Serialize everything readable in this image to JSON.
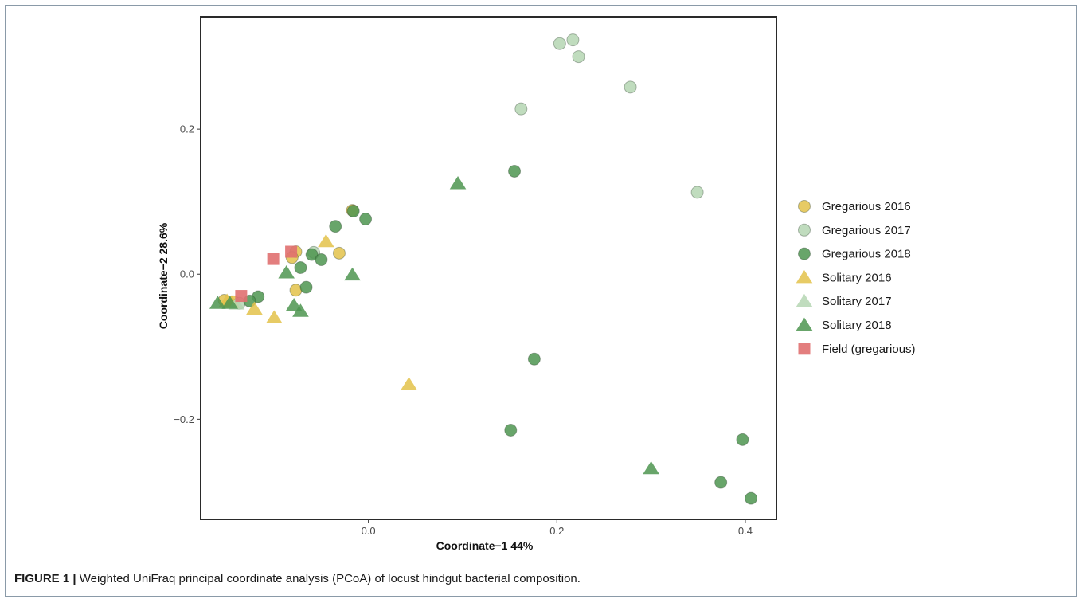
{
  "caption": {
    "label": "FIGURE 1 |",
    "text": " Weighted UniFraq principal coordinate analysis (PCoA) of locust hindgut bacterial composition."
  },
  "chart_data": {
    "type": "scatter",
    "xlabel": "Coordinate−1  44%",
    "ylabel": "Coordinate−2  28.6%",
    "xlim": [
      -0.178,
      0.433
    ],
    "ylim": [
      -0.338,
      0.355
    ],
    "xticks": [
      {
        "value": 0.0,
        "label": "0.0"
      },
      {
        "value": 0.2,
        "label": "0.2"
      },
      {
        "value": 0.4,
        "label": "0.4"
      }
    ],
    "yticks": [
      {
        "value": -0.2,
        "label": "−0.2"
      },
      {
        "value": 0.0,
        "label": "0.0"
      },
      {
        "value": 0.2,
        "label": "0.2"
      }
    ],
    "grid": false,
    "legend_position": "right",
    "series": [
      {
        "name": "Gregarious 2016",
        "marker": "circle",
        "color": "#e3c24a",
        "points": [
          [
            -0.017,
            0.088
          ],
          [
            -0.077,
            0.031
          ],
          [
            -0.077,
            -0.022
          ],
          [
            -0.031,
            0.029
          ],
          [
            -0.081,
            0.023
          ],
          [
            -0.143,
            -0.038
          ],
          [
            -0.153,
            -0.036
          ]
        ]
      },
      {
        "name": "Gregarious 2017",
        "marker": "circle",
        "color": "#b5d6b3",
        "points": [
          [
            0.203,
            0.318
          ],
          [
            0.217,
            0.323
          ],
          [
            0.223,
            0.3
          ],
          [
            0.278,
            0.258
          ],
          [
            0.162,
            0.228
          ],
          [
            0.349,
            0.113
          ],
          [
            -0.058,
            0.03
          ],
          [
            -0.137,
            -0.04
          ]
        ]
      },
      {
        "name": "Gregarious 2018",
        "marker": "circle",
        "color": "#4d9550",
        "points": [
          [
            0.155,
            0.142
          ],
          [
            -0.003,
            0.076
          ],
          [
            -0.016,
            0.087
          ],
          [
            -0.035,
            0.066
          ],
          [
            -0.06,
            0.027
          ],
          [
            -0.05,
            0.02
          ],
          [
            -0.072,
            0.009
          ],
          [
            -0.066,
            -0.018
          ],
          [
            -0.117,
            -0.031
          ],
          [
            -0.126,
            -0.037
          ],
          [
            0.176,
            -0.117
          ],
          [
            0.151,
            -0.215
          ],
          [
            0.397,
            -0.228
          ],
          [
            0.374,
            -0.287
          ],
          [
            0.406,
            -0.309
          ]
        ]
      },
      {
        "name": "Solitary 2016",
        "marker": "triangle",
        "color": "#e3c24a",
        "points": [
          [
            -0.045,
            0.045
          ],
          [
            -0.1,
            -0.06
          ],
          [
            -0.121,
            -0.048
          ],
          [
            0.043,
            -0.152
          ],
          [
            -0.145,
            -0.039
          ],
          [
            -0.15,
            -0.037
          ]
        ]
      },
      {
        "name": "Solitary 2017",
        "marker": "triangle",
        "color": "#b5d6b3",
        "points": [
          [
            -0.14,
            -0.041
          ]
        ]
      },
      {
        "name": "Solitary 2018",
        "marker": "triangle",
        "color": "#4d9550",
        "points": [
          [
            0.095,
            0.125
          ],
          [
            -0.087,
            0.002
          ],
          [
            -0.017,
            -0.001
          ],
          [
            -0.079,
            -0.043
          ],
          [
            -0.072,
            -0.051
          ],
          [
            0.3,
            -0.268
          ],
          [
            -0.16,
            -0.04
          ],
          [
            -0.147,
            -0.04
          ]
        ]
      },
      {
        "name": "Field (gregarious)",
        "marker": "square",
        "color": "#e07070",
        "points": [
          [
            -0.101,
            0.021
          ],
          [
            -0.082,
            0.031
          ],
          [
            -0.135,
            -0.03
          ]
        ]
      }
    ]
  }
}
